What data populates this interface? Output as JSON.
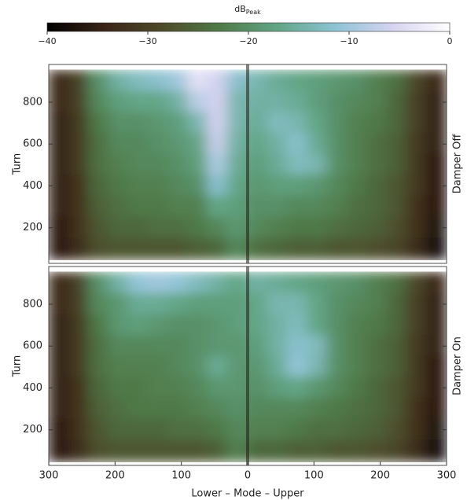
{
  "colorbar": {
    "label": "dB",
    "label_sub": "Peak",
    "clim": [
      -40,
      0
    ],
    "ticks": [
      {
        "value": -40,
        "label": "−40"
      },
      {
        "value": -30,
        "label": "−30"
      },
      {
        "value": -20,
        "label": "−20"
      },
      {
        "value": -10,
        "label": "−10"
      },
      0
    ],
    "colormap": [
      "#000000",
      "#3a2418",
      "#4d4a2a",
      "#4f7a48",
      "#62a585",
      "#8dc3d4",
      "#d6d3f0",
      "#ffffff"
    ]
  },
  "chart_data": [
    {
      "type": "heatmap",
      "label": "Damper Off",
      "ylabel": "Turn",
      "xlim": [
        -300,
        300
      ],
      "ylim": [
        30,
        980
      ],
      "yticks": [
        200,
        400,
        600,
        800
      ],
      "x": [
        -285,
        -255,
        -225,
        -195,
        -165,
        -135,
        -105,
        -75,
        -45,
        -15,
        15,
        45,
        75,
        105,
        135,
        165,
        195,
        225,
        255,
        285
      ],
      "y": [
        900,
        800,
        700,
        600,
        500,
        400,
        300,
        200,
        100
      ],
      "z": [
        [
          -34,
          -30,
          -20,
          -15,
          -13,
          -12,
          -10,
          -4,
          -6,
          -12,
          -14,
          -16,
          -17,
          -18,
          -19,
          -20,
          -22,
          -24,
          -29,
          -34
        ],
        [
          -34,
          -30,
          -21,
          -18,
          -17,
          -17,
          -15,
          -8,
          -6,
          -14,
          -15,
          -15,
          -16,
          -18,
          -20,
          -21,
          -22,
          -25,
          -30,
          -35
        ],
        [
          -35,
          -31,
          -23,
          -20,
          -20,
          -19,
          -18,
          -14,
          -6,
          -14,
          -16,
          -13,
          -14,
          -17,
          -20,
          -22,
          -23,
          -25,
          -30,
          -35
        ],
        [
          -35,
          -31,
          -24,
          -21,
          -21,
          -20,
          -19,
          -17,
          -7,
          -15,
          -17,
          -15,
          -12,
          -16,
          -20,
          -22,
          -24,
          -26,
          -31,
          -35
        ],
        [
          -35,
          -31,
          -24,
          -22,
          -21,
          -21,
          -20,
          -18,
          -9,
          -16,
          -18,
          -16,
          -13,
          -14,
          -20,
          -22,
          -24,
          -26,
          -31,
          -36
        ],
        [
          -35,
          -32,
          -25,
          -23,
          -22,
          -22,
          -21,
          -20,
          -12,
          -17,
          -19,
          -18,
          -18,
          -19,
          -21,
          -23,
          -25,
          -27,
          -31,
          -36
        ],
        [
          -35,
          -32,
          -26,
          -24,
          -23,
          -23,
          -22,
          -22,
          -17,
          -18,
          -20,
          -20,
          -21,
          -21,
          -22,
          -24,
          -25,
          -27,
          -32,
          -36
        ],
        [
          -36,
          -32,
          -27,
          -25,
          -25,
          -24,
          -24,
          -23,
          -21,
          -19,
          -21,
          -22,
          -23,
          -23,
          -24,
          -25,
          -26,
          -28,
          -32,
          -37
        ],
        [
          -36,
          -33,
          -28,
          -27,
          -27,
          -27,
          -27,
          -26,
          -25,
          -21,
          -24,
          -25,
          -26,
          -26,
          -27,
          -27,
          -28,
          -29,
          -33,
          -38
        ]
      ]
    },
    {
      "type": "heatmap",
      "label": "Damper On",
      "ylabel": "Turn",
      "xlabel": "Lower – Mode – Upper",
      "xlim": [
        -300,
        300
      ],
      "ylim": [
        30,
        980
      ],
      "yticks": [
        200,
        400,
        600,
        800
      ],
      "xticks": [
        {
          "value": -300,
          "label": "300"
        },
        {
          "value": -200,
          "label": "200"
        },
        {
          "value": -100,
          "label": "100"
        },
        0,
        100,
        200,
        300
      ],
      "x": [
        -285,
        -255,
        -225,
        -195,
        -165,
        -135,
        -105,
        -75,
        -45,
        -15,
        15,
        45,
        75,
        105,
        135,
        165,
        195,
        225,
        255,
        285
      ],
      "y": [
        900,
        800,
        700,
        600,
        500,
        400,
        300,
        200,
        100
      ],
      "z": [
        [
          -34,
          -30,
          -20,
          -15,
          -11,
          -10,
          -11,
          -13,
          -15,
          -17,
          -15,
          -16,
          -17,
          -18,
          -19,
          -20,
          -22,
          -24,
          -29,
          -34
        ],
        [
          -34,
          -30,
          -21,
          -19,
          -16,
          -16,
          -17,
          -18,
          -18,
          -18,
          -17,
          -14,
          -14,
          -17,
          -20,
          -21,
          -22,
          -25,
          -30,
          -35
        ],
        [
          -35,
          -31,
          -23,
          -19,
          -18,
          -19,
          -20,
          -20,
          -19,
          -18,
          -17,
          -15,
          -13,
          -17,
          -20,
          -22,
          -23,
          -25,
          -30,
          -35
        ],
        [
          -35,
          -31,
          -24,
          -21,
          -21,
          -21,
          -21,
          -20,
          -19,
          -19,
          -18,
          -15,
          -12,
          -13,
          -20,
          -22,
          -24,
          -26,
          -31,
          -35
        ],
        [
          -35,
          -31,
          -24,
          -22,
          -22,
          -22,
          -21,
          -20,
          -16,
          -19,
          -19,
          -16,
          -11,
          -14,
          -20,
          -22,
          -24,
          -26,
          -31,
          -36
        ],
        [
          -35,
          -32,
          -25,
          -23,
          -23,
          -22,
          -22,
          -21,
          -19,
          -19,
          -20,
          -18,
          -17,
          -19,
          -21,
          -23,
          -25,
          -27,
          -31,
          -36
        ],
        [
          -35,
          -32,
          -26,
          -24,
          -23,
          -23,
          -23,
          -22,
          -21,
          -20,
          -21,
          -21,
          -21,
          -22,
          -23,
          -24,
          -25,
          -27,
          -32,
          -36
        ],
        [
          -36,
          -32,
          -27,
          -25,
          -25,
          -25,
          -24,
          -24,
          -23,
          -21,
          -22,
          -22,
          -23,
          -24,
          -24,
          -25,
          -26,
          -28,
          -32,
          -37
        ],
        [
          -36,
          -33,
          -28,
          -27,
          -27,
          -27,
          -27,
          -27,
          -26,
          -22,
          -25,
          -25,
          -26,
          -26,
          -27,
          -27,
          -28,
          -29,
          -33,
          -38
        ]
      ]
    }
  ]
}
